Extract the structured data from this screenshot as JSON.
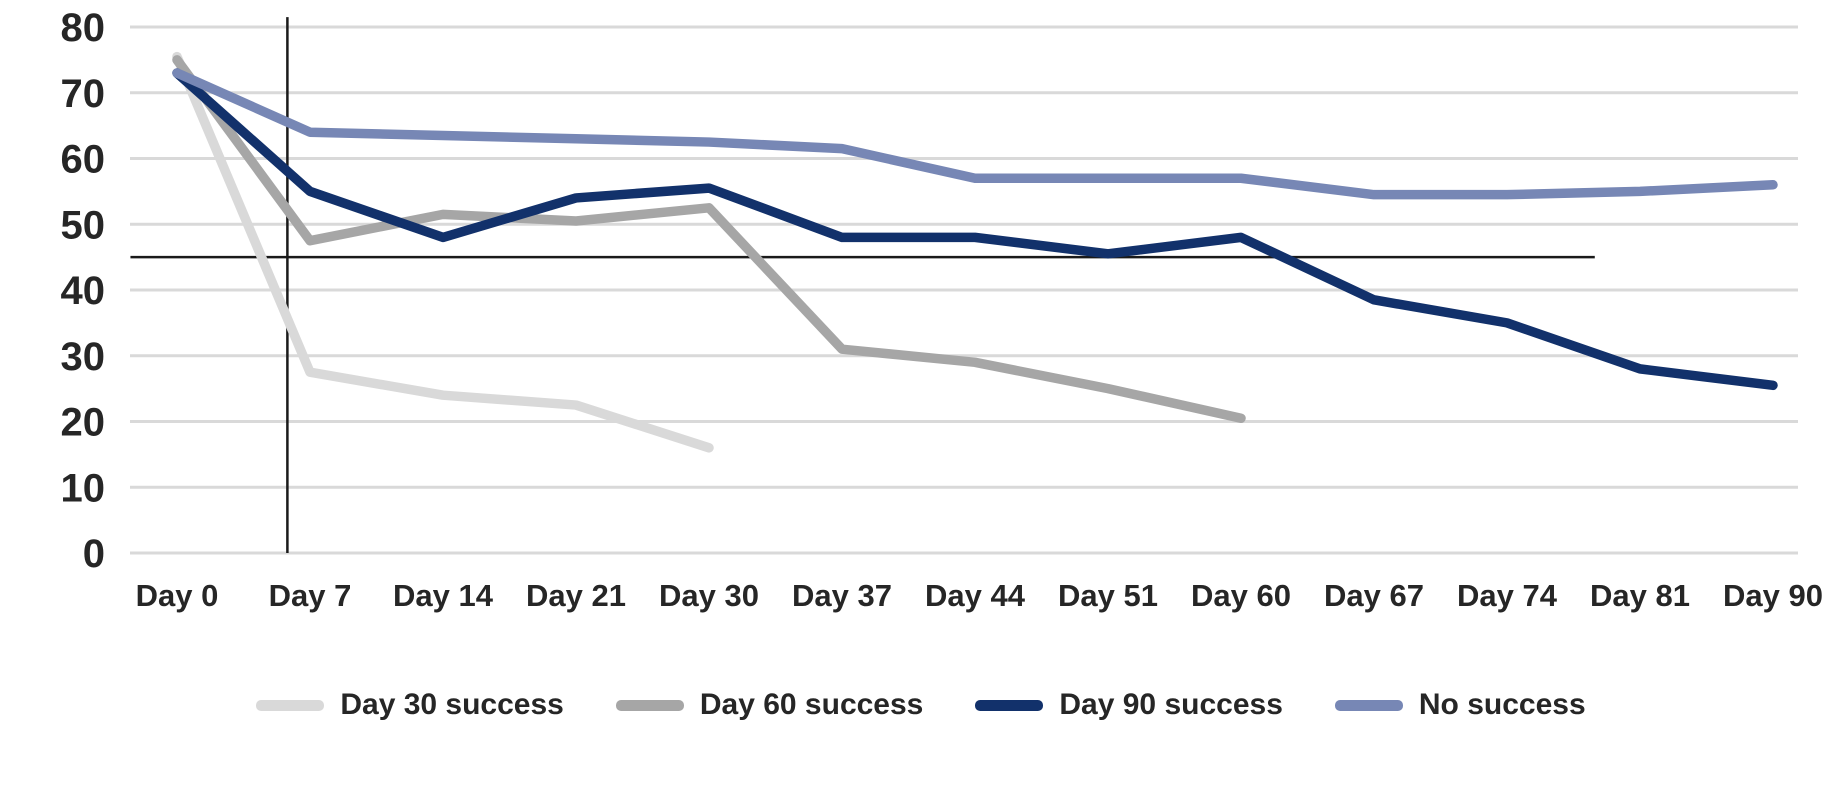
{
  "chart_data": {
    "type": "line",
    "title": "",
    "xlabel": "",
    "ylabel": "",
    "categories": [
      "Day 0",
      "Day 7",
      "Day 14",
      "Day 21",
      "Day 30",
      "Day 37",
      "Day 44",
      "Day 51",
      "Day 60",
      "Day 67",
      "Day 74",
      "Day 81",
      "Day 90"
    ],
    "series": [
      {
        "name": "Day 30 success",
        "color": "#d9d9d9",
        "values": [
          75.5,
          27.5,
          24,
          22.5,
          16,
          null,
          null,
          null,
          null,
          null,
          null,
          null,
          null
        ]
      },
      {
        "name": "Day 60 success",
        "color": "#a6a6a6",
        "values": [
          75,
          47.5,
          51.5,
          50.5,
          52.5,
          31,
          29,
          25,
          20.5,
          null,
          null,
          null,
          null
        ]
      },
      {
        "name": "Day 90 success",
        "color": "#12316b",
        "values": [
          73,
          55,
          48,
          54,
          55.5,
          48,
          48,
          45.5,
          48,
          38.5,
          35,
          28,
          25.5
        ]
      },
      {
        "name": "No success",
        "color": "#7787b5",
        "values": [
          73,
          64,
          63.5,
          63,
          62.5,
          61.5,
          57,
          57,
          57,
          54.5,
          54.5,
          55,
          56
        ]
      }
    ],
    "ylim": [
      0,
      80
    ],
    "yticks": [
      0,
      10,
      20,
      30,
      40,
      50,
      60,
      70,
      80
    ],
    "grid": "horizontal",
    "legend_position": "bottom",
    "reference_lines": [
      {
        "type": "horizontal",
        "value": 45,
        "x_index_start": -0.35,
        "x_index_end": 10.66
      },
      {
        "type": "vertical",
        "x_index": 0.83,
        "value_start": 0,
        "value_end": 81.5
      }
    ]
  },
  "styles": {
    "grid_color": "#d9d9d9",
    "text_color": "#262626",
    "reference_line_color": "#1a1a1a",
    "background": "#ffffff"
  }
}
